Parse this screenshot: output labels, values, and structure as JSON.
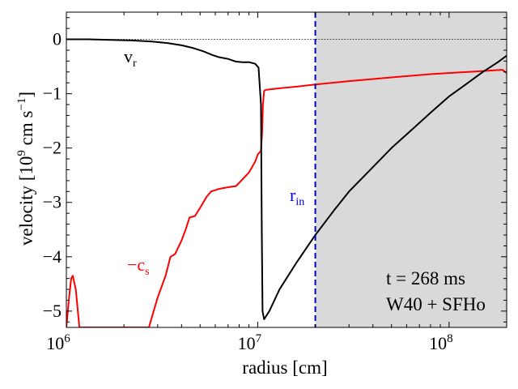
{
  "chart_data": {
    "type": "line",
    "title": "",
    "xscale": "log",
    "xlim": [
      1000000,
      200000000
    ],
    "ylim": [
      -5.3,
      0.5
    ],
    "xlabel": "radius [cm]",
    "ylabel_parts": {
      "pre": "velocity [10",
      "exp1": "9",
      "mid": " cm s",
      "exp2": "−1",
      "post": "]"
    },
    "x_ticks": [
      {
        "value": 1000000,
        "base": "10",
        "exp": "6"
      },
      {
        "value": 10000000,
        "base": "10",
        "exp": "7"
      },
      {
        "value": 100000000,
        "base": "10",
        "exp": "8"
      }
    ],
    "y_ticks": [
      {
        "value": 0,
        "label": "0"
      },
      {
        "value": -1,
        "label": "−1"
      },
      {
        "value": -2,
        "label": "−2"
      },
      {
        "value": -3,
        "label": "−3"
      },
      {
        "value": -4,
        "label": "−4"
      },
      {
        "value": -5,
        "label": "−5"
      }
    ],
    "zero_line": 0,
    "shaded_region": {
      "x_from": 20000000,
      "x_to": 200000000,
      "color": "#d9d9d9"
    },
    "r_in": {
      "x": 20000000,
      "color": "#0000cc"
    },
    "series": [
      {
        "name": "v_r",
        "color": "#000000",
        "points": [
          [
            1000000,
            0.0
          ],
          [
            1300000,
            0.0
          ],
          [
            1700000,
            -0.01
          ],
          [
            2200000,
            -0.02
          ],
          [
            2800000,
            -0.04
          ],
          [
            3400000,
            -0.07
          ],
          [
            4000000,
            -0.11
          ],
          [
            4600000,
            -0.16
          ],
          [
            5200000,
            -0.22
          ],
          [
            5800000,
            -0.29
          ],
          [
            6300000,
            -0.33
          ],
          [
            7000000,
            -0.36
          ],
          [
            7700000,
            -0.41
          ],
          [
            8300000,
            -0.42
          ],
          [
            9000000,
            -0.42
          ],
          [
            9700000,
            -0.45
          ],
          [
            10100000,
            -0.52
          ],
          [
            10400000,
            -1.2
          ],
          [
            10500000,
            -3.5
          ],
          [
            10600000,
            -5.0
          ],
          [
            10800000,
            -5.15
          ],
          [
            11500000,
            -5.0
          ],
          [
            13000000,
            -4.6
          ],
          [
            16000000,
            -4.1
          ],
          [
            20000000,
            -3.6
          ],
          [
            25000000,
            -3.15
          ],
          [
            30000000,
            -2.8
          ],
          [
            40000000,
            -2.35
          ],
          [
            50000000,
            -2.0
          ],
          [
            60000000,
            -1.75
          ],
          [
            80000000,
            -1.35
          ],
          [
            100000000,
            -1.05
          ],
          [
            120000000,
            -0.85
          ],
          [
            150000000,
            -0.6
          ],
          [
            180000000,
            -0.42
          ],
          [
            200000000,
            -0.3
          ]
        ]
      },
      {
        "name": "−c_s",
        "color": "#ff0000",
        "points": [
          [
            1000000,
            -5.3
          ],
          [
            1030000,
            -4.8
          ],
          [
            1060000,
            -4.4
          ],
          [
            1080000,
            -4.35
          ],
          [
            1120000,
            -4.6
          ],
          [
            1170000,
            -5.3
          ],
          [
            2700000,
            -5.3
          ],
          [
            3000000,
            -4.75
          ],
          [
            3300000,
            -4.35
          ],
          [
            3500000,
            -4.0
          ],
          [
            3700000,
            -3.95
          ],
          [
            4000000,
            -3.7
          ],
          [
            4200000,
            -3.5
          ],
          [
            4400000,
            -3.28
          ],
          [
            4700000,
            -3.25
          ],
          [
            5000000,
            -3.1
          ],
          [
            5400000,
            -2.9
          ],
          [
            5700000,
            -2.8
          ],
          [
            6300000,
            -2.75
          ],
          [
            7000000,
            -2.72
          ],
          [
            7700000,
            -2.7
          ],
          [
            8200000,
            -2.6
          ],
          [
            9000000,
            -2.45
          ],
          [
            9700000,
            -2.25
          ],
          [
            10000000,
            -2.12
          ],
          [
            10400000,
            -2.05
          ],
          [
            10550000,
            -1.7
          ],
          [
            10650000,
            -1.2
          ],
          [
            10800000,
            -0.95
          ],
          [
            11000000,
            -0.93
          ],
          [
            13000000,
            -0.9
          ],
          [
            16000000,
            -0.87
          ],
          [
            20000000,
            -0.83
          ],
          [
            30000000,
            -0.77
          ],
          [
            50000000,
            -0.7
          ],
          [
            80000000,
            -0.64
          ],
          [
            110000000,
            -0.61
          ],
          [
            140000000,
            -0.59
          ],
          [
            190000000,
            -0.56
          ],
          [
            200000000,
            -0.62
          ]
        ]
      }
    ],
    "annotations": [
      {
        "key": "vr",
        "base": "v",
        "sub": "r",
        "color": "#000000"
      },
      {
        "key": "cs",
        "base": "−c",
        "sub": "s",
        "color": "#ff0000"
      },
      {
        "key": "rin",
        "base": "r",
        "sub": "in",
        "color": "#0000cc"
      },
      {
        "key": "time",
        "text": "t = 268 ms",
        "color": "#000000"
      },
      {
        "key": "model",
        "text": "W40 + SFHo",
        "color": "#000000"
      }
    ]
  }
}
